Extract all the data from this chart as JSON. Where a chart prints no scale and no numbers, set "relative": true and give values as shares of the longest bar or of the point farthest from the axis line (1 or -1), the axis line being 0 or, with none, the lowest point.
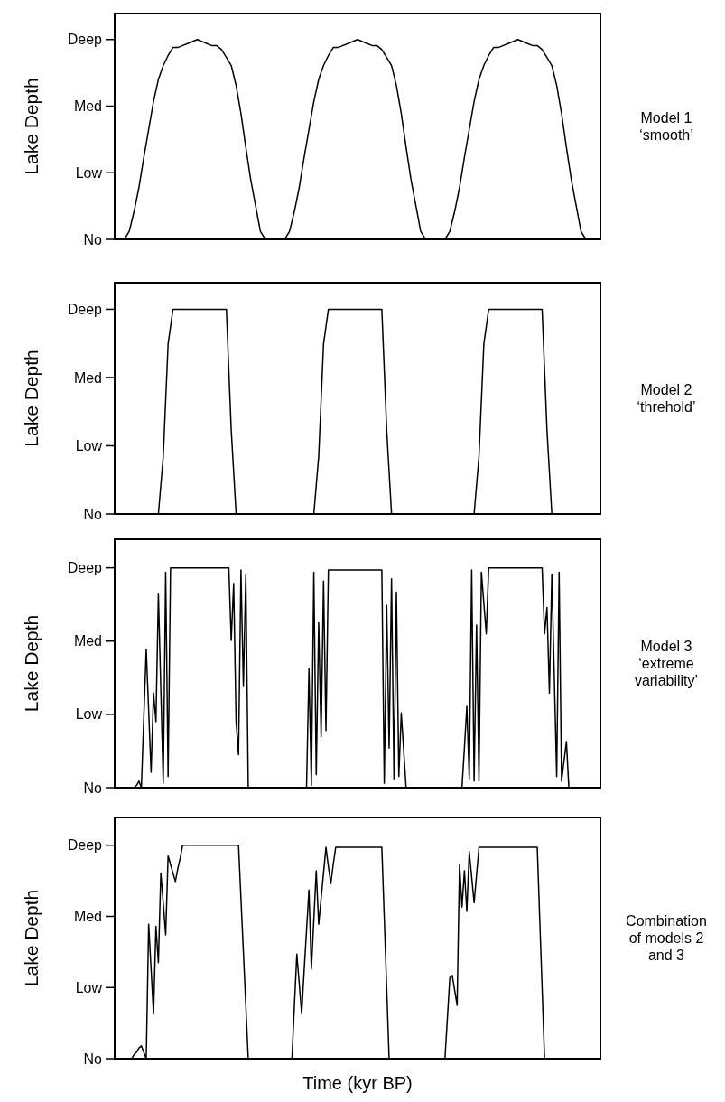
{
  "chart_data": [
    {
      "type": "line",
      "relative": true,
      "ylabel": "Lake Depth",
      "annotations": [
        "No",
        "Low",
        "Med",
        "Deep",
        "Model 1 ‘smooth’"
      ],
      "categories": [
        null,
        null,
        null,
        null,
        null,
        null,
        null,
        null,
        null,
        null,
        null,
        null,
        null,
        null,
        null,
        null,
        null,
        null,
        null,
        null,
        null,
        null,
        null,
        null,
        null,
        null,
        null,
        null,
        null,
        null,
        null,
        null,
        null,
        null,
        null,
        null,
        null,
        null,
        null,
        null,
        null,
        null,
        null,
        null,
        null,
        null,
        null,
        null,
        null,
        null,
        null,
        null,
        null,
        null,
        null,
        null,
        null,
        null,
        null,
        null,
        null,
        null,
        null,
        null,
        null,
        null,
        null,
        null,
        null,
        null,
        null,
        null,
        null,
        null,
        null,
        null,
        null,
        null,
        null,
        null,
        null,
        null,
        null,
        null,
        null,
        null,
        null,
        null,
        null,
        null,
        null,
        null,
        null,
        null,
        null,
        null,
        null,
        null,
        null,
        null,
        null
      ],
      "series": [
        {
          "color": "#000000",
          "values": [
            0,
            0,
            0,
            0.04,
            0.14,
            0.26,
            0.41,
            0.55,
            0.69,
            0.8,
            0.87,
            0.92,
            0.96,
            0.96,
            0.97,
            0.98,
            0.99,
            1,
            0.99,
            0.98,
            0.97,
            0.97,
            0.95,
            0.91,
            0.87,
            0.77,
            0.63,
            0.46,
            0.3,
            0.17,
            0.04,
            0,
            0,
            0,
            0,
            0,
            0.04,
            0.14,
            0.26,
            0.41,
            0.55,
            0.69,
            0.8,
            0.87,
            0.92,
            0.96,
            0.96,
            0.97,
            0.98,
            0.99,
            1,
            0.99,
            0.98,
            0.97,
            0.97,
            0.95,
            0.91,
            0.87,
            0.77,
            0.63,
            0.46,
            0.3,
            0.17,
            0.04,
            0,
            0,
            0,
            0,
            0,
            0.04,
            0.14,
            0.26,
            0.41,
            0.55,
            0.69,
            0.8,
            0.87,
            0.92,
            0.96,
            0.96,
            0.97,
            0.98,
            0.99,
            1,
            0.99,
            0.98,
            0.97,
            0.97,
            0.95,
            0.91,
            0.87,
            0.77,
            0.63,
            0.46,
            0.3,
            0.17,
            0.04,
            0,
            0,
            0,
            0
          ]
        }
      ]
    },
    {
      "type": "line",
      "relative": true,
      "ylabel": "Lake Depth",
      "annotations": [
        "No",
        "Low",
        "Med",
        "Deep",
        "Model 2 ‘threhold’"
      ],
      "categories": [
        null,
        null,
        null,
        null,
        null,
        null,
        null,
        null,
        null,
        null,
        null,
        null,
        null,
        null,
        null,
        null,
        null,
        null,
        null,
        null,
        null,
        null,
        null,
        null,
        null,
        null,
        null,
        null,
        null,
        null,
        null,
        null,
        null,
        null,
        null,
        null,
        null,
        null,
        null,
        null,
        null,
        null,
        null,
        null,
        null,
        null,
        null,
        null,
        null,
        null,
        null,
        null,
        null,
        null,
        null,
        null,
        null,
        null,
        null,
        null,
        null,
        null,
        null,
        null,
        null,
        null,
        null,
        null,
        null,
        null,
        null,
        null,
        null,
        null,
        null,
        null,
        null,
        null,
        null,
        null,
        null,
        null,
        null,
        null,
        null,
        null,
        null,
        null,
        null,
        null,
        null,
        null,
        null,
        null,
        null,
        null,
        null,
        null,
        null,
        null,
        null
      ],
      "series": [
        {
          "color": "#000000",
          "values": [
            0,
            0,
            0,
            0,
            0,
            0,
            0,
            0,
            0,
            0,
            0.28,
            0.83,
            1,
            1,
            1,
            1,
            1,
            1,
            1,
            1,
            1,
            1,
            1,
            1,
            0.41,
            0,
            0,
            0,
            0,
            0,
            0,
            0,
            0,
            0,
            0,
            0,
            0,
            0,
            0,
            0,
            0,
            0,
            0.28,
            0.83,
            1,
            1,
            1,
            1,
            1,
            1,
            1,
            1,
            1,
            1,
            1,
            1,
            0.41,
            0,
            0,
            0,
            0,
            0,
            0,
            0,
            0,
            0,
            0,
            0,
            0,
            0,
            0,
            0,
            0,
            0,
            0,
            0.28,
            0.83,
            1,
            1,
            1,
            1,
            1,
            1,
            1,
            1,
            1,
            1,
            1,
            1,
            0.41,
            0,
            0,
            0,
            0,
            0,
            0,
            0,
            0,
            0,
            0,
            0
          ]
        }
      ]
    },
    {
      "type": "line",
      "relative": true,
      "ylabel": "Lake Depth",
      "annotations": [
        "No",
        "Low",
        "Med",
        "Deep",
        "Model 3 ‘extreme variability’"
      ],
      "categories": [
        null,
        null,
        null,
        null,
        null,
        null,
        null,
        null,
        null,
        null,
        null,
        null,
        null,
        null,
        null,
        null,
        null,
        null,
        null,
        null,
        null,
        null,
        null,
        null,
        null,
        null,
        null,
        null,
        null,
        null,
        null,
        null,
        null,
        null,
        null,
        null,
        null,
        null,
        null,
        null,
        null,
        null,
        null,
        null,
        null,
        null,
        null,
        null,
        null,
        null,
        null,
        null,
        null,
        null,
        null,
        null,
        null,
        null,
        null,
        null,
        null,
        null,
        null,
        null,
        null,
        null,
        null,
        null,
        null,
        null,
        null,
        null,
        null,
        null,
        null,
        null,
        null,
        null,
        null,
        null,
        null,
        null,
        null,
        null,
        null,
        null,
        null,
        null,
        null,
        null,
        null,
        null,
        null,
        null,
        null,
        null,
        null,
        null,
        null,
        null,
        null,
        null,
        null,
        null,
        null,
        null,
        null,
        null,
        null,
        null,
        null,
        null,
        null,
        null,
        null,
        null,
        null,
        null,
        null,
        null,
        null,
        null,
        null,
        null,
        null,
        null,
        null,
        null,
        null,
        null,
        null,
        null,
        null,
        null,
        null,
        null,
        null,
        null,
        null,
        null,
        null,
        null,
        null,
        null,
        null,
        null,
        null,
        null,
        null,
        null,
        null,
        null,
        null,
        null,
        null,
        null,
        null,
        null,
        null,
        null,
        null,
        null,
        null,
        null,
        null,
        null,
        null,
        null,
        null,
        null,
        null,
        null,
        null,
        null,
        null,
        null,
        null,
        null,
        null,
        null,
        null,
        null,
        null,
        null,
        null,
        null,
        null,
        null,
        null,
        null,
        null,
        null,
        null,
        null,
        null,
        null,
        null,
        null,
        null,
        null,
        null
      ],
      "series": [
        {
          "color": "#000000",
          "values": [
            0,
            0,
            0,
            0,
            0,
            0,
            0,
            0,
            0,
            0.01,
            0.03,
            0,
            0.32,
            0.63,
            0.35,
            0.07,
            0.43,
            0.3,
            0.88,
            0.45,
            0.02,
            0.98,
            0.05,
            1,
            1,
            1,
            1,
            1,
            1,
            1,
            1,
            1,
            1,
            1,
            1,
            1,
            1,
            1,
            1,
            1,
            1,
            1,
            1,
            1,
            1,
            1,
            1,
            1,
            0.67,
            0.93,
            0.3,
            0.15,
            0.99,
            0.46,
            0.97,
            0,
            0,
            0,
            0,
            0,
            0,
            0,
            0,
            0,
            0,
            0,
            0,
            0,
            0,
            0,
            0,
            0,
            0,
            0,
            0,
            0,
            0,
            0,
            0,
            0,
            0.54,
            0.01,
            0.98,
            0.06,
            0.75,
            0.23,
            0.94,
            0.26,
            0.99,
            0.99,
            0.99,
            0.99,
            0.99,
            0.99,
            0.99,
            0.99,
            0.99,
            0.99,
            0.99,
            0.99,
            0.99,
            0.99,
            0.99,
            0.99,
            0.99,
            0.99,
            0.99,
            0.99,
            0.99,
            0.99,
            0.99,
            0.02,
            0.83,
            0.18,
            0.95,
            0.04,
            0.89,
            0.05,
            0.34,
            0.17,
            0,
            0,
            0,
            0,
            0,
            0,
            0,
            0,
            0,
            0,
            0,
            0,
            0,
            0,
            0,
            0,
            0,
            0,
            0,
            0,
            0,
            0,
            0,
            0,
            0.18,
            0.37,
            0.04,
            0.99,
            0.03,
            0.74,
            0.03,
            0.98,
            0.84,
            0.7,
            1,
            1,
            1,
            1,
            1,
            1,
            1,
            1,
            1,
            1,
            1,
            1,
            1,
            1,
            1,
            1,
            1,
            1,
            1,
            1,
            1,
            1,
            1,
            0.7,
            0.82,
            0.43,
            0.97,
            0.51,
            0.05,
            0.98,
            0.03,
            0.12,
            0.21,
            0,
            0,
            0,
            0,
            0,
            0,
            0,
            0,
            0,
            0,
            0,
            0,
            0,
            0
          ]
        }
      ]
    },
    {
      "type": "line",
      "relative": true,
      "ylabel": "Lake Depth",
      "xlabel": "Time (kyr BP)",
      "annotations": [
        "No",
        "Low",
        "Med",
        "Deep",
        "Combination of models 2 and 3"
      ],
      "categories": [
        null,
        null,
        null,
        null,
        null,
        null,
        null,
        null,
        null,
        null,
        null,
        null,
        null,
        null,
        null,
        null,
        null,
        null,
        null,
        null,
        null,
        null,
        null,
        null,
        null,
        null,
        null,
        null,
        null,
        null,
        null,
        null,
        null,
        null,
        null,
        null,
        null,
        null,
        null,
        null,
        null,
        null,
        null,
        null,
        null,
        null,
        null,
        null,
        null,
        null,
        null,
        null,
        null,
        null,
        null,
        null,
        null,
        null,
        null,
        null,
        null,
        null,
        null,
        null,
        null,
        null,
        null,
        null,
        null,
        null,
        null,
        null,
        null,
        null,
        null,
        null,
        null,
        null,
        null,
        null,
        null,
        null,
        null,
        null,
        null,
        null,
        null,
        null,
        null,
        null,
        null,
        null,
        null,
        null,
        null,
        null,
        null,
        null,
        null,
        null,
        null,
        null,
        null,
        null,
        null,
        null,
        null,
        null,
        null,
        null,
        null,
        null,
        null,
        null,
        null,
        null,
        null,
        null,
        null,
        null,
        null,
        null,
        null,
        null,
        null,
        null,
        null,
        null,
        null,
        null,
        null,
        null,
        null,
        null,
        null,
        null,
        null,
        null,
        null,
        null,
        null,
        null,
        null,
        null,
        null,
        null,
        null,
        null,
        null,
        null,
        null,
        null,
        null,
        null,
        null,
        null,
        null,
        null,
        null,
        null,
        null,
        null,
        null,
        null,
        null,
        null,
        null,
        null,
        null,
        null,
        null,
        null,
        null,
        null,
        null,
        null,
        null,
        null,
        null,
        null,
        null,
        null,
        null,
        null,
        null,
        null,
        null,
        null,
        null,
        null,
        null,
        null,
        null,
        null,
        null,
        null,
        null,
        null,
        null,
        null,
        null
      ],
      "series": [
        {
          "color": "#000000",
          "values": [
            0,
            0,
            0,
            0,
            0,
            0,
            0,
            0,
            0.02,
            0.03,
            0.05,
            0.06,
            0.03,
            0,
            0.63,
            0.42,
            0.21,
            0.62,
            0.45,
            0.87,
            0.73,
            0.58,
            0.95,
            0.91,
            0.87,
            0.83,
            0.89,
            0.94,
            1,
            1,
            1,
            1,
            1,
            1,
            1,
            1,
            1,
            1,
            1,
            1,
            1,
            1,
            1,
            1,
            1,
            1,
            1,
            1,
            1,
            1,
            1,
            1,
            0.75,
            0.5,
            0.25,
            0,
            0,
            0,
            0,
            0,
            0,
            0,
            0,
            0,
            0,
            0,
            0,
            0,
            0,
            0,
            0,
            0,
            0,
            0,
            0.25,
            0.49,
            0.35,
            0.21,
            0.41,
            0.6,
            0.79,
            0.42,
            0.65,
            0.88,
            0.63,
            0.75,
            0.87,
            0.99,
            0.9,
            0.82,
            0.91,
            0.99,
            0.99,
            0.99,
            0.99,
            0.99,
            0.99,
            0.99,
            0.99,
            0.99,
            0.99,
            0.99,
            0.99,
            0.99,
            0.99,
            0.99,
            0.99,
            0.99,
            0.99,
            0.99,
            0.99,
            0.66,
            0.33,
            0,
            0,
            0,
            0,
            0,
            0,
            0,
            0,
            0,
            0,
            0,
            0,
            0,
            0,
            0,
            0,
            0,
            0,
            0,
            0,
            0,
            0,
            0,
            0,
            0.19,
            0.38,
            0.39,
            0.32,
            0.25,
            0.91,
            0.71,
            0.88,
            0.69,
            0.97,
            0.85,
            0.73,
            0.86,
            0.99,
            0.99,
            0.99,
            0.99,
            0.99,
            0.99,
            0.99,
            0.99,
            0.99,
            0.99,
            0.99,
            0.99,
            0.99,
            0.99,
            0.99,
            0.99,
            0.99,
            0.99,
            0.99,
            0.99,
            0.99,
            0.99,
            0.99,
            0.99,
            0.99,
            0.66,
            0.33,
            0,
            0,
            0,
            0,
            0,
            0,
            0,
            0,
            0,
            0,
            0,
            0,
            0,
            0,
            0,
            0,
            0,
            0,
            0,
            0,
            0,
            0,
            0,
            0
          ]
        }
      ]
    }
  ]
}
